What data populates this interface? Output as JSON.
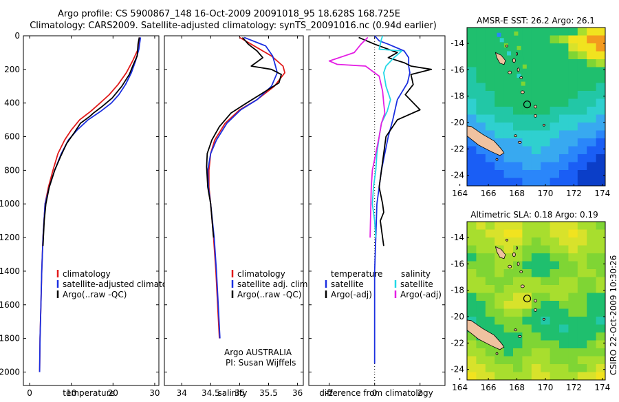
{
  "header": {
    "title_line1": "Argo profile: CS 5900867_148 16-Oct-2009 20091018_95 18.628S 168.725E",
    "title_line2": "Climatology: CARS2009. Satellite-adjusted climatology: synTS_20091016.nc (0.94d earlier)"
  },
  "colors": {
    "climatology": "#e11a1a",
    "satellite": "#1b2fe0",
    "argo": "#000000",
    "satellite_diff": "#22d8e6",
    "argo_salinity_diff": "#e41ee4",
    "land": "#f0c2a0"
  },
  "chart_data": [
    {
      "type": "line",
      "id": "temperature",
      "xlabel": "temperature",
      "xlim": [
        -1.5,
        31
      ],
      "xticks": [
        0,
        10,
        20,
        30
      ],
      "ylim": [
        0,
        2080
      ],
      "yticks": [
        0,
        200,
        400,
        600,
        800,
        1000,
        1200,
        1400,
        1600,
        1800,
        2000
      ],
      "legend": [
        "climatology",
        "satellite-adjusted climatology",
        "Argo(..raw -QC)"
      ],
      "series": [
        {
          "name": "climatology",
          "color": "#e11a1a",
          "x": [
            26.4,
            26.0,
            24.7,
            23.2,
            21.2,
            19.1,
            16.9,
            14.6,
            12.0,
            10.0,
            8.4,
            6.8,
            5.6,
            4.5,
            3.7,
            3.2,
            2.9,
            2.7,
            2.5,
            2.4
          ],
          "y": [
            10,
            80,
            150,
            220,
            290,
            350,
            400,
            450,
            500,
            560,
            620,
            700,
            800,
            900,
            1000,
            1200,
            1400,
            1600,
            1800,
            2000
          ]
        },
        {
          "name": "satellite-adjusted climatology",
          "color": "#1b2fe0",
          "x": [
            26.6,
            26.2,
            25.4,
            24.4,
            23.0,
            21.4,
            19.6,
            17.0,
            14.0,
            11.4,
            9.3,
            7.6,
            6.0,
            4.7,
            3.7,
            3.2,
            2.9,
            2.7,
            2.5,
            2.4
          ],
          "y": [
            10,
            80,
            150,
            220,
            290,
            350,
            400,
            450,
            500,
            560,
            620,
            700,
            800,
            900,
            1000,
            1200,
            1400,
            1600,
            1800,
            2000
          ]
        },
        {
          "name": "Argo(..raw -QC)",
          "color": "#000000",
          "x": [
            26.3,
            26.0,
            25.8,
            24.9,
            23.9,
            22.1,
            19.8,
            17.4,
            15.3,
            14.4,
            12.2,
            10.6,
            8.9,
            7.4,
            6.0,
            4.7,
            3.9,
            3.5,
            3.2
          ],
          "y": [
            10,
            50,
            120,
            170,
            230,
            300,
            370,
            420,
            460,
            480,
            520,
            580,
            640,
            720,
            800,
            900,
            1000,
            1100,
            1250
          ]
        }
      ]
    },
    {
      "type": "line",
      "id": "salinity",
      "xlabel": "salinity",
      "xlim": [
        33.7,
        36.1
      ],
      "xticks": [
        34,
        34.5,
        35,
        35.5,
        36
      ],
      "ylim": [
        0,
        2080
      ],
      "legend": [
        "climatology",
        "satellite adj. clim.",
        "Argo(..raw -QC)"
      ],
      "annotation": [
        "Argo AUSTRALIA",
        "PI: Susan Wijffels"
      ],
      "series": [
        {
          "name": "climatology",
          "color": "#e11a1a",
          "x": [
            35.0,
            35.25,
            35.55,
            35.75,
            35.78,
            35.6,
            35.3,
            35.0,
            34.75,
            34.57,
            34.5,
            34.47,
            34.47,
            34.5,
            34.55,
            34.59,
            34.62,
            34.65
          ],
          "y": [
            10,
            60,
            120,
            180,
            220,
            300,
            380,
            440,
            520,
            620,
            700,
            800,
            900,
            1000,
            1200,
            1400,
            1600,
            1800
          ]
        },
        {
          "name": "satellite adj. clim.",
          "color": "#1b2fe0",
          "x": [
            35.08,
            35.45,
            35.57,
            35.62,
            35.65,
            35.55,
            35.3,
            35.02,
            34.78,
            34.6,
            34.5,
            34.45,
            34.46,
            34.5,
            34.56,
            34.6,
            34.63,
            34.66
          ],
          "y": [
            10,
            60,
            120,
            180,
            220,
            300,
            380,
            440,
            520,
            620,
            700,
            800,
            900,
            1000,
            1200,
            1400,
            1600,
            1800
          ]
        },
        {
          "name": "Argo(..raw -QC)",
          "color": "#000000",
          "x": [
            35.05,
            35.15,
            35.3,
            35.4,
            35.2,
            35.55,
            35.72,
            35.68,
            35.4,
            35.12,
            34.85,
            34.65,
            34.52,
            34.44,
            34.43,
            34.45,
            34.5,
            34.55
          ],
          "y": [
            10,
            50,
            90,
            130,
            180,
            200,
            230,
            280,
            340,
            400,
            460,
            540,
            620,
            700,
            780,
            900,
            1000,
            1200
          ]
        }
      ]
    },
    {
      "type": "line",
      "id": "difference",
      "xlabel": "difference from climatology",
      "xlim": [
        -2.9,
        3.1
      ],
      "xticks": [
        -2,
        0,
        2
      ],
      "ylim": [
        0,
        2080
      ],
      "legend": [
        "temperature",
        "satellite",
        "Argo(-adj)",
        "salinity",
        "satellite",
        "Argo(-adj)"
      ],
      "legend_titles": [
        "temperature",
        "salinity"
      ],
      "series": [
        {
          "name": "temperature satellite",
          "color": "#1b2fe0",
          "x": [
            0.0,
            0.2,
            0.6,
            1.3,
            1.5,
            1.5,
            1.55,
            1.45,
            1.0,
            0.8,
            0.6,
            0.45,
            0.3,
            0.2,
            0.1,
            0.05,
            0.0,
            0.0,
            0.0
          ],
          "y": [
            0,
            30,
            50,
            90,
            130,
            180,
            220,
            280,
            380,
            500,
            600,
            700,
            800,
            900,
            1000,
            1200,
            1400,
            1600,
            1950
          ]
        },
        {
          "name": "temperature Argo(-adj)",
          "color": "#000000",
          "x": [
            -0.7,
            0.0,
            1.0,
            0.6,
            1.3,
            1.6,
            2.5,
            1.6,
            1.7,
            1.35,
            2.0,
            1.0,
            0.8,
            0.5,
            0.4,
            0.3,
            0.2,
            0.35,
            0.4,
            0.25,
            0.3,
            0.4
          ],
          "y": [
            10,
            50,
            100,
            130,
            160,
            180,
            200,
            230,
            290,
            350,
            440,
            500,
            540,
            600,
            700,
            800,
            900,
            1000,
            1050,
            1100,
            1150,
            1250
          ]
        },
        {
          "name": "salinity satellite",
          "color": "#22d8e6",
          "x": [
            0.35,
            0.3,
            0.2,
            1.2,
            0.85,
            0.5,
            0.4,
            0.5,
            0.7,
            0.55,
            0.3,
            0.2,
            0.1,
            0.05,
            -0.05,
            -0.1,
            0.0,
            0.05
          ],
          "y": [
            0,
            20,
            80,
            90,
            130,
            180,
            220,
            300,
            380,
            450,
            520,
            600,
            700,
            800,
            900,
            1000,
            1100,
            1200
          ]
        },
        {
          "name": "salinity Argo(-adj)",
          "color": "#e41ee4",
          "x": [
            -0.3,
            -0.6,
            -0.9,
            -2.0,
            -1.65,
            -0.4,
            0.2,
            0.35,
            0.4,
            0.45,
            0.3,
            0.2,
            0.05,
            -0.1,
            -0.15,
            -0.2
          ],
          "y": [
            10,
            50,
            100,
            150,
            170,
            180,
            240,
            330,
            400,
            460,
            520,
            600,
            700,
            800,
            900,
            1200
          ]
        }
      ]
    },
    {
      "type": "heatmap",
      "id": "sst-map",
      "title": "AMSR-E SST: 26.2 Argo: 26.1",
      "xlim": [
        164.5,
        174.2
      ],
      "ylim": [
        -24.8,
        -12.8
      ],
      "xticks": [
        164,
        166,
        168,
        170,
        172,
        174
      ],
      "yticks": [
        -14,
        -16,
        -18,
        -20,
        -22,
        -24
      ],
      "argo_position": [
        168.725,
        -18.628
      ]
    },
    {
      "type": "heatmap",
      "id": "sla-map",
      "title": "Altimetric SLA: 0.18 Argo: 0.19",
      "xlim": [
        164.5,
        174.2
      ],
      "ylim": [
        -24.8,
        -12.8
      ],
      "xticks": [
        164,
        166,
        168,
        170,
        172,
        174
      ],
      "yticks": [
        -14,
        -16,
        -18,
        -20,
        -22,
        -24
      ],
      "argo_position": [
        168.725,
        -18.628
      ]
    }
  ],
  "footer": {
    "stamp": "CSIRO 22-Oct-2009 10:30:26"
  }
}
